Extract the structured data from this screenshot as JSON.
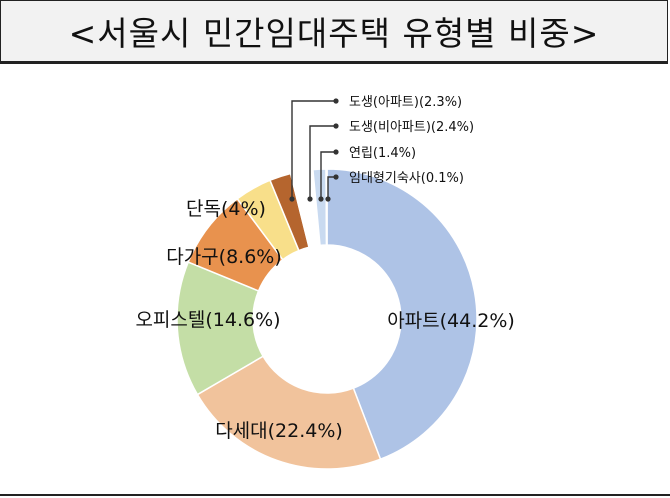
{
  "title": "<서울시 민간임대주택 유형별 비중>",
  "colors": {
    "title_bg": "#f2f2f2",
    "border": "#222222",
    "leader": "#333333"
  },
  "chart_data": {
    "type": "pie",
    "donut": true,
    "title": "<서울시 민간임대주택 유형별 비중>",
    "slices": [
      {
        "label": "아파트",
        "value": 44.2,
        "display": "아파트(44.2%)",
        "color": "#aec3e6"
      },
      {
        "label": "다세대",
        "value": 22.4,
        "display": "다세대(22.4%)",
        "color": "#f1c39c"
      },
      {
        "label": "오피스텔",
        "value": 14.6,
        "display": "오피스텔(14.6%)",
        "color": "#c4dea6"
      },
      {
        "label": "다가구",
        "value": 8.6,
        "display": "다가구(8.6%)",
        "color": "#e8924e"
      },
      {
        "label": "단독",
        "value": 4.0,
        "display": "단독(4%)",
        "color": "#f8df8a"
      },
      {
        "label": "도생(아파트)",
        "value": 2.3,
        "display": "도생(아파트)(2.3%)",
        "color": "#b5652e"
      },
      {
        "label": "도생(비아파트)",
        "value": 2.4,
        "display": "도생(비아파트)(2.4%)",
        "color": "#ffffff"
      },
      {
        "label": "연립",
        "value": 1.4,
        "display": "연립(1.4%)",
        "color": "#c9daf0"
      },
      {
        "label": "임대형기숙사",
        "value": 0.1,
        "display": "임대형기숙사(0.1%)",
        "color": "#d6b14a"
      }
    ]
  }
}
